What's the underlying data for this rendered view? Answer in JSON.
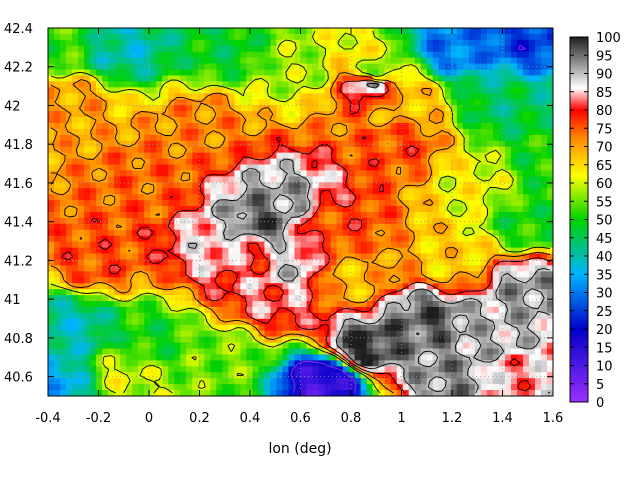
{
  "chart_data": {
    "type": "heatmap",
    "title": "",
    "xlabel": "lon (deg)",
    "ylabel": "",
    "xlim": [
      -0.4,
      1.6
    ],
    "ylim": [
      40.5,
      42.4
    ],
    "x_ticks": [
      "-0.4",
      "-0.2",
      "0",
      "0.2",
      "0.4",
      "0.6",
      "0.8",
      "1",
      "1.2",
      "1.4",
      "1.6"
    ],
    "y_ticks": [
      "40.6",
      "40.8",
      "41",
      "41.2",
      "41.4",
      "41.6",
      "41.8",
      "42",
      "42.2",
      "42.4"
    ],
    "colorbar_range": [
      0,
      100
    ],
    "colorbar_ticks": [
      "0",
      "5",
      "10",
      "15",
      "20",
      "25",
      "30",
      "35",
      "40",
      "45",
      "50",
      "55",
      "60",
      "65",
      "70",
      "75",
      "80",
      "85",
      "90",
      "95",
      "100"
    ],
    "colormap": [
      {
        "value": 0,
        "color": "#9b30ff"
      },
      {
        "value": 20,
        "color": "#0000c8"
      },
      {
        "value": 35,
        "color": "#00b4ff"
      },
      {
        "value": 50,
        "color": "#00d200"
      },
      {
        "value": 62,
        "color": "#ffff00"
      },
      {
        "value": 72,
        "color": "#ff8c00"
      },
      {
        "value": 80,
        "color": "#ff0000"
      },
      {
        "value": 86,
        "color": "#ffffff"
      },
      {
        "value": 100,
        "color": "#1e1e1e"
      }
    ],
    "grid": true,
    "contours": true,
    "regions": [
      {
        "lon": 0.0,
        "lat": 41.6,
        "value": 74
      },
      {
        "lon": -0.2,
        "lat": 41.2,
        "value": 76
      },
      {
        "lon": 0.2,
        "lat": 41.9,
        "value": 72
      },
      {
        "lon": 0.4,
        "lat": 41.2,
        "value": 80
      },
      {
        "lon": 0.7,
        "lat": 41.4,
        "value": 76
      },
      {
        "lon": 0.5,
        "lat": 41.0,
        "value": 82
      },
      {
        "lon": 1.0,
        "lat": 41.8,
        "value": 76
      },
      {
        "lon": 1.3,
        "lat": 41.6,
        "value": 62
      },
      {
        "lon": 1.5,
        "lat": 41.4,
        "value": 50
      },
      {
        "lon": 1.2,
        "lat": 41.2,
        "value": 66
      },
      {
        "lon": 0.8,
        "lat": 41.1,
        "value": 68
      },
      {
        "lon": 0.55,
        "lat": 41.5,
        "value": 92
      },
      {
        "lon": 0.45,
        "lat": 41.4,
        "value": 96
      },
      {
        "lon": 0.55,
        "lat": 41.15,
        "value": 88
      },
      {
        "lon": 0.3,
        "lat": 41.27,
        "value": 86
      },
      {
        "lon": -0.3,
        "lat": 40.85,
        "value": 40
      },
      {
        "lon": 0.0,
        "lat": 40.8,
        "value": 50
      },
      {
        "lon": -0.1,
        "lat": 40.6,
        "value": 60
      },
      {
        "lon": 0.3,
        "lat": 40.7,
        "value": 55
      },
      {
        "lon": -0.35,
        "lat": 40.55,
        "value": 35
      },
      {
        "lon": 0.85,
        "lat": 40.75,
        "value": 99
      },
      {
        "lon": 1.1,
        "lat": 40.9,
        "value": 96
      },
      {
        "lon": 1.35,
        "lat": 40.8,
        "value": 90
      },
      {
        "lon": 1.5,
        "lat": 41.05,
        "value": 92
      },
      {
        "lon": 1.2,
        "lat": 40.6,
        "value": 93
      },
      {
        "lon": 1.45,
        "lat": 40.6,
        "value": 84
      },
      {
        "lon": 0.7,
        "lat": 40.58,
        "value": 12
      },
      {
        "lon": -0.35,
        "lat": 42.35,
        "value": 52
      },
      {
        "lon": -0.1,
        "lat": 42.3,
        "value": 40
      },
      {
        "lon": 0.3,
        "lat": 42.3,
        "value": 48
      },
      {
        "lon": 0.6,
        "lat": 42.2,
        "value": 58
      },
      {
        "lon": 0.9,
        "lat": 42.15,
        "value": 46
      },
      {
        "lon": 1.2,
        "lat": 42.3,
        "value": 30
      },
      {
        "lon": 1.5,
        "lat": 42.35,
        "value": 25
      },
      {
        "lon": 1.4,
        "lat": 42.0,
        "value": 45
      },
      {
        "lon": 0.89,
        "lat": 42.12,
        "value": 98
      },
      {
        "lon": -0.3,
        "lat": 42.0,
        "value": 70
      },
      {
        "lon": 1.55,
        "lat": 41.7,
        "value": 50
      },
      {
        "lon": 1.0,
        "lat": 42.0,
        "value": 68
      }
    ]
  }
}
